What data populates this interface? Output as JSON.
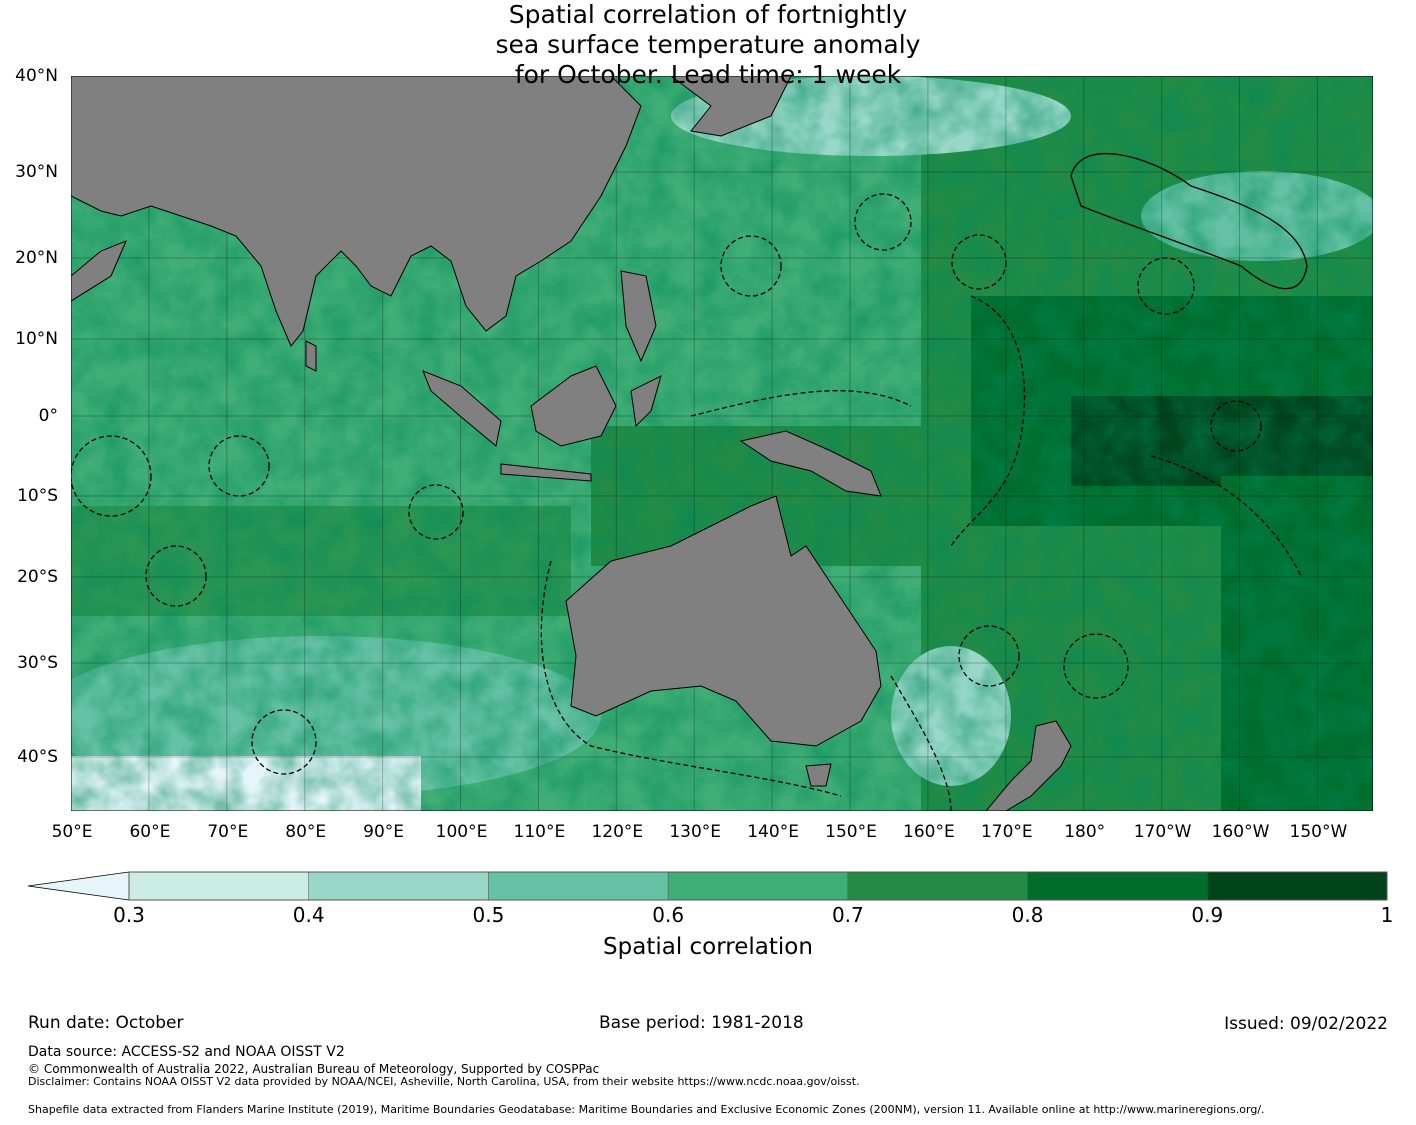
{
  "title": [
    "Spatial correlation of fortnightly",
    "sea surface temperature anomaly",
    "for October. Lead time: 1 week"
  ],
  "y_ticks": [
    "40°N",
    "30°N",
    "20°N",
    "10°N",
    "0°",
    "10°S",
    "20°S",
    "30°S",
    "40°S"
  ],
  "x_ticks": [
    "50°E",
    "60°E",
    "70°E",
    "80°E",
    "90°E",
    "100°E",
    "110°E",
    "120°E",
    "130°E",
    "140°E",
    "150°E",
    "160°E",
    "170°E",
    "180°",
    "170°W",
    "160°W",
    "150°W"
  ],
  "colorbar": {
    "label": "Spatial correlation",
    "ticks": [
      "0.3",
      "0.4",
      "0.5",
      "0.6",
      "0.7",
      "0.8",
      "0.9",
      "1"
    ],
    "colors": [
      "#e5f5f9",
      "#ccece6",
      "#99d8c9",
      "#66c2a4",
      "#41ae76",
      "#238b45",
      "#006d2c",
      "#00441b"
    ],
    "land_color": "#808080"
  },
  "footer": {
    "run_date": "Run date: October",
    "base_period": "Base period: 1981-2018",
    "issued": "Issued: 09/02/2022",
    "data_source": "Data source: ACCESS-S2 and NOAA OISST V2",
    "copyright": "© Commonwealth of Australia 2022, Australian Bureau of Meteorology, Supported by COSPPac",
    "disclaimer": "Disclaimer: Contains NOAA OISST V2 data provided by NOAA/NCEI, Asheville, North Carolina, USA, from their website https://www.ncdc.noaa.gov/oisst.",
    "shapefile": "Shapefile data extracted from Flanders Marine Institute (2019), Maritime Boundaries Geodatabase: Maritime Boundaries and Exclusive Economic Zones (200NM), version 11. Available online at http://www.marineregions.org/."
  }
}
